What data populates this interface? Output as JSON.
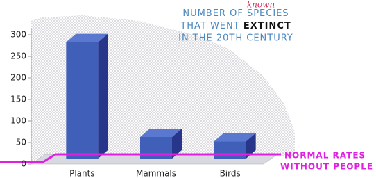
{
  "chart_data": {
    "type": "bar3d",
    "title_lines": [
      [
        "NUMBER OF",
        "SPECIES"
      ],
      [
        "THAT WENT",
        "EXTINCT"
      ],
      [
        "IN THE 20TH CENTURY"
      ]
    ],
    "title_insert": "known",
    "categories": [
      "Plants",
      "Mammals",
      "Birds"
    ],
    "values": [
      270,
      50,
      40
    ],
    "color": "#3f5fb8",
    "ylim": [
      0,
      300
    ],
    "yticks": [
      0,
      50,
      100,
      150,
      200,
      250,
      300
    ],
    "annotation": [
      "NORMAL RATES",
      "WITHOUT PEOPLE"
    ]
  }
}
